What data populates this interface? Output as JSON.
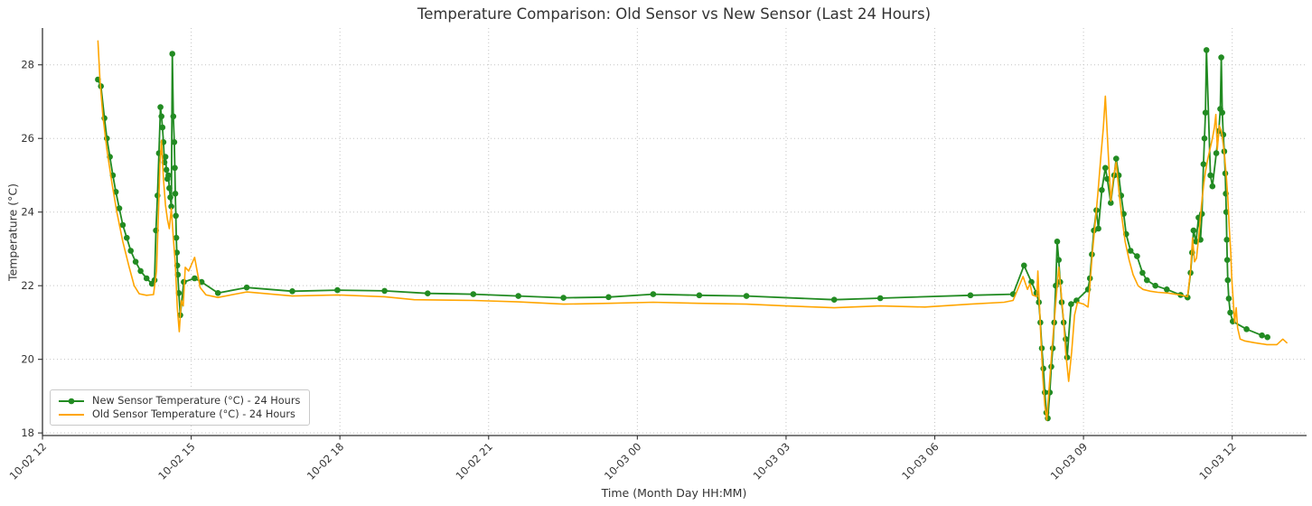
{
  "title": "Temperature Comparison: Old Sensor vs New Sensor (Last 24 Hours)",
  "axes": {
    "x_label": "Time (Month Day HH:MM)",
    "y_label": "Temperature (°C)",
    "x_tick_labels": [
      "10-02 12",
      "10-02 15",
      "10-02 18",
      "10-02 21",
      "10-03 00",
      "10-03 03",
      "10-03 06",
      "10-03 09",
      "10-03 12"
    ],
    "y_tick_labels": [
      "18",
      "20",
      "22",
      "24",
      "26",
      "28"
    ]
  },
  "legend": {
    "position": "lower-left",
    "items": [
      {
        "label": "New Sensor Temperature (°C) - 24 Hours",
        "color": "#228B22",
        "marker": "circle"
      },
      {
        "label": "Old Sensor Temperature (°C) - 24 Hours",
        "color": "#FFA500",
        "marker": "none"
      }
    ]
  },
  "colors": {
    "new_sensor_green": "#228B22",
    "old_sensor_orange": "#FFA500",
    "grid": "#c3c3c3",
    "text": "#333333"
  },
  "chart_data": {
    "type": "line",
    "title": "Temperature Comparison: Old Sensor vs New Sensor (Last 24 Hours)",
    "xlabel": "Time (Month Day HH:MM)",
    "ylabel": "Temperature (°C)",
    "grid": true,
    "legend_position": "lower left",
    "x_axis_time_origin": "10-02 12:00",
    "x_unit": "hours after 10-02 12:00",
    "xlim": [
      0,
      25.5
    ],
    "ylim": [
      17.93,
      29.0
    ],
    "y_ticks": [
      18,
      20,
      22,
      24,
      26,
      28
    ],
    "x_ticks": [
      {
        "t": 0,
        "label": "10-02 12"
      },
      {
        "t": 3,
        "label": "10-02 15"
      },
      {
        "t": 6,
        "label": "10-02 18"
      },
      {
        "t": 9,
        "label": "10-02 21"
      },
      {
        "t": 12,
        "label": "10-03 00"
      },
      {
        "t": 15,
        "label": "10-03 03"
      },
      {
        "t": 18,
        "label": "10-03 06"
      },
      {
        "t": 21,
        "label": "10-03 09"
      },
      {
        "t": 24,
        "label": "10-03 12"
      }
    ],
    "series": [
      {
        "id": "new-sensor",
        "name": "New Sensor Temperature (°C) - 24 Hours",
        "color": "#228B22",
        "marker": "circle",
        "line_width": 1.8,
        "points": [
          [
            1.12,
            27.6
          ],
          [
            1.18,
            27.42
          ],
          [
            1.25,
            26.55
          ],
          [
            1.3,
            26.0
          ],
          [
            1.36,
            25.5
          ],
          [
            1.42,
            25.0
          ],
          [
            1.48,
            24.55
          ],
          [
            1.55,
            24.1
          ],
          [
            1.62,
            23.65
          ],
          [
            1.7,
            23.3
          ],
          [
            1.78,
            22.95
          ],
          [
            1.88,
            22.65
          ],
          [
            1.98,
            22.4
          ],
          [
            2.1,
            22.2
          ],
          [
            2.21,
            22.05
          ],
          [
            2.26,
            22.15
          ],
          [
            2.29,
            23.5
          ],
          [
            2.32,
            24.45
          ],
          [
            2.35,
            25.6
          ],
          [
            2.38,
            26.85
          ],
          [
            2.4,
            26.6
          ],
          [
            2.42,
            26.3
          ],
          [
            2.44,
            25.9
          ],
          [
            2.46,
            25.35
          ],
          [
            2.48,
            25.5
          ],
          [
            2.5,
            25.15
          ],
          [
            2.52,
            24.9
          ],
          [
            2.54,
            25.0
          ],
          [
            2.56,
            24.65
          ],
          [
            2.58,
            24.4
          ],
          [
            2.6,
            24.15
          ],
          [
            2.62,
            28.3
          ],
          [
            2.64,
            26.6
          ],
          [
            2.66,
            25.9
          ],
          [
            2.67,
            25.2
          ],
          [
            2.68,
            24.5
          ],
          [
            2.69,
            23.9
          ],
          [
            2.7,
            23.3
          ],
          [
            2.71,
            22.9
          ],
          [
            2.72,
            22.55
          ],
          [
            2.73,
            22.3
          ],
          [
            2.75,
            21.8
          ],
          [
            2.78,
            21.2
          ],
          [
            2.85,
            22.1
          ],
          [
            3.07,
            22.2
          ],
          [
            3.21,
            22.1
          ],
          [
            3.54,
            21.8
          ],
          [
            4.12,
            21.95
          ],
          [
            5.04,
            21.85
          ],
          [
            5.95,
            21.88
          ],
          [
            6.9,
            21.86
          ],
          [
            7.77,
            21.79
          ],
          [
            8.69,
            21.77
          ],
          [
            9.6,
            21.72
          ],
          [
            10.51,
            21.67
          ],
          [
            11.42,
            21.69
          ],
          [
            12.32,
            21.77
          ],
          [
            13.25,
            21.74
          ],
          [
            14.2,
            21.72
          ],
          [
            15.97,
            21.62
          ],
          [
            16.9,
            21.66
          ],
          [
            18.72,
            21.74
          ],
          [
            19.58,
            21.77
          ],
          [
            19.8,
            22.55
          ],
          [
            19.95,
            22.1
          ],
          [
            20.05,
            21.8
          ],
          [
            20.1,
            21.55
          ],
          [
            20.13,
            21.0
          ],
          [
            20.16,
            20.3
          ],
          [
            20.19,
            19.75
          ],
          [
            20.22,
            19.1
          ],
          [
            20.25,
            18.55
          ],
          [
            20.28,
            18.4
          ],
          [
            20.32,
            19.1
          ],
          [
            20.35,
            19.8
          ],
          [
            20.38,
            20.3
          ],
          [
            20.41,
            21.0
          ],
          [
            20.44,
            22.0
          ],
          [
            20.47,
            23.2
          ],
          [
            20.5,
            22.7
          ],
          [
            20.53,
            22.1
          ],
          [
            20.56,
            21.55
          ],
          [
            20.6,
            21.0
          ],
          [
            20.64,
            20.55
          ],
          [
            20.67,
            20.05
          ],
          [
            20.75,
            21.5
          ],
          [
            20.86,
            21.6
          ],
          [
            21.09,
            21.9
          ],
          [
            21.13,
            22.2
          ],
          [
            21.17,
            22.85
          ],
          [
            21.21,
            23.5
          ],
          [
            21.26,
            24.05
          ],
          [
            21.3,
            23.55
          ],
          [
            21.37,
            24.6
          ],
          [
            21.44,
            25.2
          ],
          [
            21.48,
            24.9
          ],
          [
            21.55,
            24.25
          ],
          [
            21.62,
            25.0
          ],
          [
            21.66,
            25.45
          ],
          [
            21.71,
            25.0
          ],
          [
            21.76,
            24.45
          ],
          [
            21.81,
            23.95
          ],
          [
            21.86,
            23.4
          ],
          [
            21.95,
            22.95
          ],
          [
            22.08,
            22.8
          ],
          [
            22.19,
            22.35
          ],
          [
            22.28,
            22.15
          ],
          [
            22.45,
            22.0
          ],
          [
            22.68,
            21.9
          ],
          [
            22.96,
            21.75
          ],
          [
            23.1,
            21.68
          ],
          [
            23.16,
            22.35
          ],
          [
            23.19,
            22.9
          ],
          [
            23.22,
            23.5
          ],
          [
            23.27,
            23.2
          ],
          [
            23.32,
            23.85
          ],
          [
            23.36,
            23.25
          ],
          [
            23.39,
            23.95
          ],
          [
            23.42,
            25.3
          ],
          [
            23.44,
            26.0
          ],
          [
            23.46,
            26.7
          ],
          [
            23.48,
            28.4
          ],
          [
            23.56,
            25.0
          ],
          [
            23.6,
            24.7
          ],
          [
            23.68,
            25.6
          ],
          [
            23.73,
            26.2
          ],
          [
            23.76,
            26.8
          ],
          [
            23.78,
            28.2
          ],
          [
            23.8,
            26.7
          ],
          [
            23.82,
            26.1
          ],
          [
            23.84,
            25.65
          ],
          [
            23.86,
            25.05
          ],
          [
            23.87,
            24.5
          ],
          [
            23.88,
            24.0
          ],
          [
            23.89,
            23.25
          ],
          [
            23.9,
            22.7
          ],
          [
            23.91,
            22.15
          ],
          [
            23.93,
            21.65
          ],
          [
            23.96,
            21.27
          ],
          [
            24.01,
            21.03
          ],
          [
            24.29,
            20.82
          ],
          [
            24.6,
            20.65
          ],
          [
            24.71,
            20.6
          ]
        ]
      },
      {
        "id": "old-sensor",
        "name": "Old Sensor Temperature (°C) - 24 Hours",
        "color": "#FFA500",
        "marker": "none",
        "line_width": 1.6,
        "points": [
          [
            1.12,
            28.65
          ],
          [
            1.16,
            27.6
          ],
          [
            1.22,
            26.6
          ],
          [
            1.3,
            25.7
          ],
          [
            1.4,
            24.8
          ],
          [
            1.5,
            24.0
          ],
          [
            1.62,
            23.2
          ],
          [
            1.75,
            22.5
          ],
          [
            1.85,
            22.0
          ],
          [
            1.95,
            21.78
          ],
          [
            2.1,
            21.74
          ],
          [
            2.24,
            21.76
          ],
          [
            2.3,
            22.4
          ],
          [
            2.34,
            24.0
          ],
          [
            2.37,
            25.3
          ],
          [
            2.4,
            25.95
          ],
          [
            2.44,
            24.9
          ],
          [
            2.48,
            24.2
          ],
          [
            2.52,
            23.8
          ],
          [
            2.56,
            23.55
          ],
          [
            2.6,
            24.1
          ],
          [
            2.64,
            23.3
          ],
          [
            2.68,
            22.6
          ],
          [
            2.72,
            21.4
          ],
          [
            2.76,
            20.75
          ],
          [
            2.8,
            21.6
          ],
          [
            2.84,
            21.45
          ],
          [
            2.88,
            22.5
          ],
          [
            2.95,
            22.4
          ],
          [
            3.07,
            22.77
          ],
          [
            3.18,
            21.95
          ],
          [
            3.3,
            21.75
          ],
          [
            3.54,
            21.68
          ],
          [
            4.12,
            21.83
          ],
          [
            5.04,
            21.72
          ],
          [
            5.95,
            21.75
          ],
          [
            6.9,
            21.7
          ],
          [
            7.5,
            21.62
          ],
          [
            8.69,
            21.6
          ],
          [
            9.6,
            21.56
          ],
          [
            10.51,
            21.5
          ],
          [
            11.42,
            21.52
          ],
          [
            12.32,
            21.55
          ],
          [
            13.25,
            21.52
          ],
          [
            14.2,
            21.5
          ],
          [
            15.0,
            21.45
          ],
          [
            15.97,
            21.4
          ],
          [
            16.9,
            21.45
          ],
          [
            17.8,
            21.42
          ],
          [
            18.72,
            21.5
          ],
          [
            19.4,
            21.55
          ],
          [
            19.58,
            21.6
          ],
          [
            19.78,
            22.25
          ],
          [
            19.87,
            21.9
          ],
          [
            19.92,
            22.05
          ],
          [
            19.97,
            21.75
          ],
          [
            20.06,
            21.7
          ],
          [
            20.08,
            22.4
          ],
          [
            20.11,
            21.5
          ],
          [
            20.14,
            20.6
          ],
          [
            20.18,
            19.5
          ],
          [
            20.22,
            18.75
          ],
          [
            20.26,
            18.35
          ],
          [
            20.31,
            19.3
          ],
          [
            20.36,
            20.2
          ],
          [
            20.42,
            21.2
          ],
          [
            20.5,
            22.5
          ],
          [
            20.55,
            21.8
          ],
          [
            20.6,
            21.0
          ],
          [
            20.64,
            20.2
          ],
          [
            20.7,
            19.4
          ],
          [
            20.76,
            20.2
          ],
          [
            20.82,
            21.2
          ],
          [
            20.88,
            21.55
          ],
          [
            21.0,
            21.5
          ],
          [
            21.09,
            21.42
          ],
          [
            21.13,
            22.0
          ],
          [
            21.18,
            22.9
          ],
          [
            21.23,
            23.6
          ],
          [
            21.29,
            24.5
          ],
          [
            21.35,
            25.5
          ],
          [
            21.4,
            26.3
          ],
          [
            21.44,
            27.15
          ],
          [
            21.5,
            25.6
          ],
          [
            21.55,
            24.3
          ],
          [
            21.6,
            24.9
          ],
          [
            21.66,
            25.35
          ],
          [
            21.72,
            24.5
          ],
          [
            21.78,
            23.8
          ],
          [
            21.84,
            23.2
          ],
          [
            21.92,
            22.7
          ],
          [
            22.0,
            22.3
          ],
          [
            22.1,
            22.0
          ],
          [
            22.2,
            21.9
          ],
          [
            22.35,
            21.85
          ],
          [
            22.5,
            21.82
          ],
          [
            22.7,
            21.8
          ],
          [
            22.96,
            21.75
          ],
          [
            23.1,
            21.7
          ],
          [
            23.16,
            22.4
          ],
          [
            23.2,
            23.3
          ],
          [
            23.24,
            22.65
          ],
          [
            23.28,
            22.75
          ],
          [
            23.33,
            23.4
          ],
          [
            23.38,
            24.2
          ],
          [
            23.43,
            24.8
          ],
          [
            23.46,
            25.1
          ],
          [
            23.5,
            25.4
          ],
          [
            23.55,
            25.7
          ],
          [
            23.6,
            26.0
          ],
          [
            23.64,
            26.3
          ],
          [
            23.67,
            26.65
          ],
          [
            23.7,
            25.7
          ],
          [
            23.74,
            26.35
          ],
          [
            23.79,
            26.15
          ],
          [
            23.84,
            25.6
          ],
          [
            23.88,
            25.0
          ],
          [
            23.91,
            24.4
          ],
          [
            23.94,
            23.6
          ],
          [
            23.97,
            22.9
          ],
          [
            23.99,
            22.2
          ],
          [
            24.02,
            21.6
          ],
          [
            24.05,
            21.0
          ],
          [
            24.08,
            21.4
          ],
          [
            24.11,
            20.85
          ],
          [
            24.16,
            20.55
          ],
          [
            24.25,
            20.5
          ],
          [
            24.45,
            20.45
          ],
          [
            24.7,
            20.4
          ],
          [
            24.9,
            20.4
          ],
          [
            25.02,
            20.55
          ],
          [
            25.1,
            20.45
          ]
        ]
      }
    ]
  }
}
